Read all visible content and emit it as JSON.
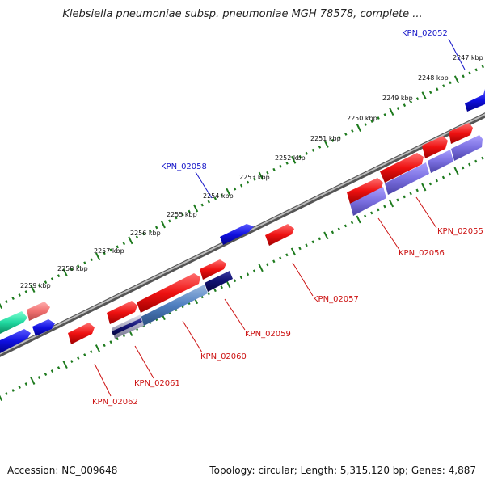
{
  "title": "Klebsiella pneumoniae subsp. pneumoniae MGH 78578, complete ...",
  "footer": {
    "accession": "Accession: NC_009648",
    "summary": "Topology: circular; Length: 5,315,120 bp; Genes: 4,887"
  },
  "colors": {
    "scale_dots": "#1d7a1d",
    "backbone": "#7a7a7a",
    "forward_label": "#1515c8",
    "reverse_label": "#cc1111",
    "forward_gene": "#1010e0",
    "reverse_gene": "#ee1111",
    "highlight_gene": "#20d8a0"
  },
  "scale_labels": [
    "2247 kbp",
    "2248 kbp",
    "2249 kbp",
    "2250 kbp",
    "2251 kbp",
    "2252 kbp",
    "2253 kbp",
    "2254 kbp",
    "2255 kbp",
    "2256 kbp",
    "2257 kbp",
    "2258 kbp",
    "2259 kbp"
  ],
  "gene_labels": {
    "KPN_02052": "KPN_02052",
    "KPN_02058": "KPN_02058",
    "KPN_02055": "KPN_02055",
    "KPN_02056": "KPN_02056",
    "KPN_02057": "KPN_02057",
    "KPN_02059": "KPN_02059",
    "KPN_02060": "KPN_02060",
    "KPN_02061": "KPN_02061",
    "KPN_02062": "KPN_02062"
  }
}
